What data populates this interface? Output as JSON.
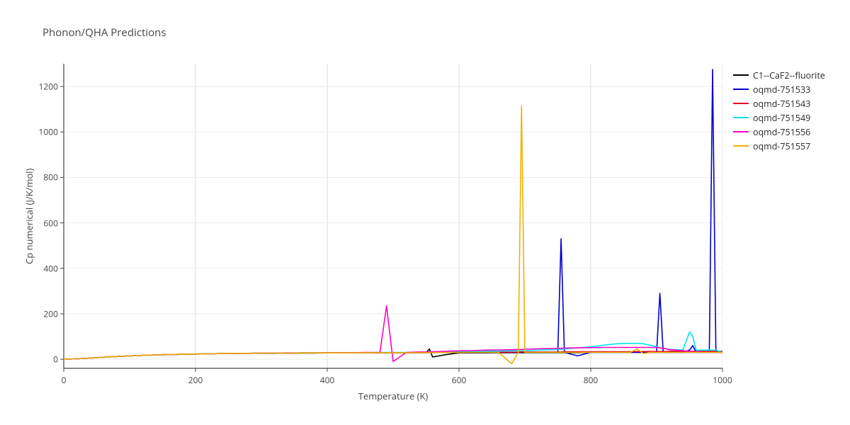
{
  "title": "Phonon/QHA Predictions",
  "chart": {
    "type": "line",
    "background_color": "#ffffff",
    "plot_background": "#ffffff",
    "grid_color": "#eeeeee",
    "major_grid_color": "#dddddd",
    "axis_color": "#444444",
    "title_fontsize": 15,
    "label_fontsize": 13,
    "tick_fontsize": 12,
    "line_width": 1.6,
    "xlabel": "Temperature (K)",
    "ylabel": "Cp numerical (J/K/mol)",
    "xlim": [
      0,
      1000
    ],
    "ylim": [
      -40,
      1300
    ],
    "xticks": [
      0,
      200,
      400,
      600,
      800,
      1000
    ],
    "yticks": [
      0,
      200,
      400,
      600,
      800,
      1000,
      1200
    ],
    "legend_position": "right-outside",
    "x_common": [
      0,
      20,
      40,
      60,
      80,
      100,
      120,
      140,
      160,
      180,
      200,
      220,
      240,
      260,
      280,
      300,
      320,
      340,
      360,
      380,
      400,
      420,
      440,
      460,
      480,
      490,
      500,
      520,
      540,
      550,
      555,
      560,
      580,
      600,
      620,
      640,
      660,
      680,
      690,
      695,
      700,
      720,
      740,
      750,
      755,
      760,
      780,
      800,
      820,
      840,
      860,
      870,
      880,
      890,
      900,
      905,
      910,
      915,
      920,
      930,
      940,
      950,
      955,
      960,
      965,
      970,
      975,
      980,
      985,
      990,
      1000
    ],
    "series": [
      {
        "name": "C1--CaF2--fluorite",
        "color": "#000000",
        "y": [
          0,
          2,
          5,
          9,
          12,
          15,
          17,
          19,
          20,
          22,
          23,
          24,
          25,
          25,
          26,
          26,
          26,
          27,
          27,
          27,
          28,
          28,
          28,
          28,
          28,
          28,
          28,
          28,
          29,
          29,
          45,
          10,
          20,
          28,
          28,
          28,
          29,
          29,
          29,
          29,
          29,
          29,
          29,
          29,
          29,
          29,
          29,
          30,
          30,
          30,
          30,
          30,
          30,
          30,
          30,
          30,
          30,
          30,
          30,
          30,
          30,
          30,
          30,
          30,
          30,
          30,
          30,
          30,
          30,
          30,
          30
        ]
      },
      {
        "name": "oqmd-751533",
        "color": "#0000cd",
        "y": [
          0,
          2,
          5,
          9,
          12,
          15,
          17,
          19,
          21,
          22,
          23,
          24,
          25,
          26,
          26,
          27,
          27,
          27,
          28,
          28,
          28,
          28,
          28,
          29,
          29,
          29,
          29,
          29,
          29,
          29,
          29,
          29,
          30,
          30,
          30,
          30,
          30,
          30,
          30,
          30,
          30,
          30,
          30,
          30,
          530,
          30,
          15,
          30,
          30,
          30,
          30,
          30,
          30,
          30,
          30,
          290,
          30,
          30,
          30,
          30,
          30,
          40,
          60,
          30,
          30,
          30,
          30,
          30,
          1275,
          30,
          30
        ]
      },
      {
        "name": "oqmd-751543",
        "color": "#e40022",
        "y": [
          0,
          2,
          5,
          9,
          12,
          15,
          17,
          19,
          21,
          22,
          23,
          24,
          25,
          26,
          26,
          27,
          27,
          27,
          28,
          28,
          28,
          28,
          28,
          29,
          29,
          29,
          29,
          29,
          30,
          30,
          30,
          30,
          30,
          30,
          31,
          31,
          31,
          31,
          31,
          32,
          32,
          32,
          32,
          32,
          32,
          33,
          33,
          33,
          33,
          33,
          33,
          34,
          34,
          34,
          34,
          34,
          34,
          34,
          35,
          35,
          35,
          35,
          35,
          35,
          35,
          35,
          35,
          35,
          35,
          35,
          35
        ]
      },
      {
        "name": "oqmd-751549",
        "color": "#00e5ee",
        "y": [
          0,
          2,
          5,
          9,
          12,
          15,
          17,
          19,
          21,
          22,
          23,
          24,
          25,
          26,
          26,
          27,
          27,
          28,
          28,
          28,
          29,
          29,
          29,
          29,
          30,
          30,
          30,
          30,
          31,
          31,
          31,
          31,
          32,
          33,
          34,
          35,
          36,
          37,
          37,
          37,
          38,
          40,
          42,
          43,
          44,
          45,
          50,
          55,
          62,
          68,
          70,
          70,
          68,
          62,
          55,
          50,
          48,
          46,
          44,
          42,
          42,
          120,
          100,
          40,
          40,
          40,
          40,
          40,
          40,
          40,
          30
        ]
      },
      {
        "name": "oqmd-751556",
        "color": "#ff00c8",
        "y": [
          0,
          2,
          5,
          9,
          12,
          15,
          17,
          19,
          21,
          22,
          23,
          24,
          25,
          26,
          26,
          27,
          27,
          28,
          28,
          28,
          29,
          29,
          29,
          30,
          30,
          235,
          -10,
          30,
          32,
          32,
          32,
          33,
          35,
          37,
          38,
          40,
          41,
          42,
          43,
          43,
          44,
          46,
          47,
          48,
          48,
          49,
          50,
          51,
          52,
          52,
          52,
          52,
          52,
          52,
          52,
          50,
          48,
          45,
          42,
          40,
          38,
          35,
          34,
          33,
          32,
          30,
          30,
          30,
          30,
          30,
          30
        ]
      },
      {
        "name": "oqmd-751557",
        "color": "#f2b100",
        "y": [
          0,
          2,
          5,
          9,
          12,
          15,
          17,
          19,
          21,
          22,
          23,
          24,
          25,
          26,
          26,
          27,
          27,
          27,
          28,
          28,
          28,
          28,
          28,
          29,
          29,
          29,
          29,
          29,
          29,
          29,
          29,
          29,
          30,
          30,
          30,
          30,
          30,
          -20,
          30,
          1115,
          30,
          30,
          30,
          30,
          30,
          30,
          30,
          30,
          30,
          30,
          30,
          45,
          25,
          30,
          30,
          30,
          30,
          30,
          30,
          30,
          30,
          30,
          30,
          30,
          30,
          30,
          30,
          30,
          30,
          30,
          30
        ]
      }
    ]
  }
}
